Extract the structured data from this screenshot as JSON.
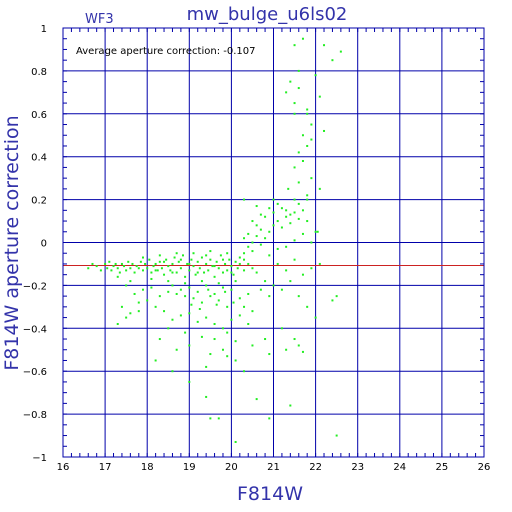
{
  "colors": {
    "background": "#ffffff",
    "frame": "#0000aa",
    "grid": "#0000aa",
    "points": "#22ee22",
    "average_line": "#cc2222",
    "text": "#3333aa",
    "tick_text": "#000000"
  },
  "chart_data": {
    "type": "scatter",
    "title": "mw_bulge_u6ls02",
    "panel_label": "WF3",
    "xlabel": "F814W",
    "ylabel": "F814W aperture correction",
    "annotation": "Average aperture correction: -0.107",
    "average_value": -0.107,
    "xlim": [
      16,
      26
    ],
    "ylim": [
      -1,
      1
    ],
    "x_ticks": [
      16,
      17,
      18,
      19,
      20,
      21,
      22,
      23,
      24,
      25,
      26
    ],
    "y_ticks": [
      -1,
      -0.8,
      -0.6,
      -0.4,
      -0.2,
      0,
      0.2,
      0.4,
      0.6,
      0.8,
      1
    ],
    "x_tick_labels": [
      "16",
      "17",
      "18",
      "19",
      "20",
      "21",
      "22",
      "23",
      "24",
      "25",
      "26"
    ],
    "y_tick_labels": [
      "−1",
      "−0.8",
      "−0.6",
      "−0.4",
      "−0.2",
      "0",
      "0.2",
      "0.4",
      "0.6",
      "0.8",
      "1"
    ],
    "grid": true,
    "series": [
      {
        "points": [
          [
            16.6,
            -0.12
          ],
          [
            16.7,
            -0.1
          ],
          [
            16.8,
            -0.11
          ],
          [
            16.9,
            -0.13
          ],
          [
            17.0,
            -0.1
          ],
          [
            17.05,
            -0.12
          ],
          [
            17.1,
            -0.09
          ],
          [
            17.15,
            -0.13
          ],
          [
            17.2,
            -0.11
          ],
          [
            17.25,
            -0.1
          ],
          [
            17.3,
            -0.12
          ],
          [
            17.35,
            -0.14
          ],
          [
            17.4,
            -0.1
          ],
          [
            17.45,
            -0.11
          ],
          [
            17.5,
            -0.13
          ],
          [
            17.55,
            -0.09
          ],
          [
            17.6,
            -0.12
          ],
          [
            17.65,
            -0.1
          ],
          [
            17.7,
            -0.14
          ],
          [
            17.75,
            -0.11
          ],
          [
            17.8,
            -0.12
          ],
          [
            17.85,
            -0.09
          ],
          [
            17.9,
            -0.13
          ],
          [
            17.95,
            -0.1
          ],
          [
            18.0,
            -0.12
          ],
          [
            18.05,
            -0.08
          ],
          [
            18.1,
            -0.14
          ],
          [
            18.15,
            -0.11
          ],
          [
            18.2,
            -0.1
          ],
          [
            18.25,
            -0.13
          ],
          [
            18.3,
            -0.09
          ],
          [
            18.35,
            -0.12
          ],
          [
            18.4,
            -0.15
          ],
          [
            18.45,
            -0.08
          ],
          [
            18.5,
            -0.11
          ],
          [
            18.55,
            -0.13
          ],
          [
            18.6,
            -0.1
          ],
          [
            18.65,
            -0.07
          ],
          [
            18.7,
            -0.14
          ],
          [
            18.75,
            -0.09
          ],
          [
            18.8,
            -0.12
          ],
          [
            18.85,
            -0.06
          ],
          [
            18.9,
            -0.16
          ],
          [
            18.95,
            -0.1
          ],
          [
            19.0,
            -0.13
          ],
          [
            19.05,
            -0.08
          ],
          [
            19.1,
            -0.11
          ],
          [
            19.15,
            -0.15
          ],
          [
            19.2,
            -0.09
          ],
          [
            19.25,
            -0.12
          ],
          [
            19.3,
            -0.07
          ],
          [
            19.35,
            -0.14
          ],
          [
            19.4,
            -0.1
          ],
          [
            19.45,
            -0.13
          ],
          [
            19.5,
            -0.08
          ],
          [
            19.55,
            -0.11
          ],
          [
            19.6,
            -0.16
          ],
          [
            19.65,
            -0.09
          ],
          [
            19.7,
            -0.12
          ],
          [
            19.75,
            -0.06
          ],
          [
            19.8,
            -0.14
          ],
          [
            19.85,
            -0.1
          ],
          [
            19.9,
            -0.13
          ],
          [
            19.95,
            -0.08
          ],
          [
            20.0,
            -0.11
          ],
          [
            20.05,
            -0.15
          ],
          [
            20.1,
            -0.09
          ],
          [
            20.15,
            -0.12
          ],
          [
            20.2,
            -0.07
          ],
          [
            20.3,
            -0.13
          ],
          [
            20.4,
            -0.1
          ],
          [
            20.5,
            -0.12
          ],
          [
            17.3,
            -0.16
          ],
          [
            17.6,
            -0.18
          ],
          [
            17.9,
            -0.07
          ],
          [
            18.1,
            -0.17
          ],
          [
            18.3,
            -0.06
          ],
          [
            18.5,
            -0.18
          ],
          [
            18.7,
            -0.05
          ],
          [
            18.9,
            -0.19
          ],
          [
            19.1,
            -0.05
          ],
          [
            19.3,
            -0.18
          ],
          [
            19.5,
            -0.04
          ],
          [
            19.7,
            -0.19
          ],
          [
            19.9,
            -0.05
          ],
          [
            20.1,
            -0.18
          ],
          [
            18.2,
            -0.13
          ],
          [
            18.6,
            -0.14
          ],
          [
            18.8,
            -0.08
          ],
          [
            19.0,
            -0.1
          ],
          [
            19.2,
            -0.14
          ],
          [
            19.4,
            -0.06
          ],
          [
            19.6,
            -0.11
          ],
          [
            19.8,
            -0.08
          ],
          [
            20.0,
            -0.14
          ],
          [
            18.4,
            -0.09
          ],
          [
            18.6,
            -0.2
          ],
          [
            18.8,
            -0.22
          ],
          [
            19.0,
            -0.21
          ],
          [
            19.2,
            -0.23
          ],
          [
            19.4,
            -0.2
          ],
          [
            19.6,
            -0.24
          ],
          [
            19.8,
            -0.21
          ],
          [
            20.0,
            -0.22
          ],
          [
            18.9,
            -0.25
          ],
          [
            19.1,
            -0.26
          ],
          [
            19.3,
            -0.28
          ],
          [
            19.5,
            -0.25
          ],
          [
            19.7,
            -0.27
          ],
          [
            19.9,
            -0.3
          ],
          [
            20.2,
            -0.26
          ],
          [
            20.4,
            -0.24
          ],
          [
            18.7,
            -0.24
          ],
          [
            19.05,
            -0.29
          ],
          [
            19.25,
            -0.31
          ],
          [
            19.45,
            -0.22
          ],
          [
            19.65,
            -0.29
          ],
          [
            19.85,
            -0.23
          ],
          [
            20.05,
            -0.28
          ],
          [
            18.5,
            -0.23
          ],
          [
            17.5,
            -0.2
          ],
          [
            17.7,
            -0.24
          ],
          [
            17.9,
            -0.22
          ],
          [
            18.1,
            -0.21
          ],
          [
            18.3,
            -0.25
          ],
          [
            17.4,
            -0.3
          ],
          [
            17.6,
            -0.33
          ],
          [
            17.8,
            -0.28
          ],
          [
            17.3,
            -0.38
          ],
          [
            17.5,
            -0.35
          ],
          [
            17.8,
            -0.32
          ],
          [
            18.0,
            -0.27
          ],
          [
            18.2,
            -0.3
          ],
          [
            18.4,
            -0.32
          ],
          [
            18.6,
            -0.36
          ],
          [
            18.8,
            -0.34
          ],
          [
            19.0,
            -0.33
          ],
          [
            19.2,
            -0.37
          ],
          [
            19.4,
            -0.35
          ],
          [
            19.6,
            -0.38
          ],
          [
            19.8,
            -0.4
          ],
          [
            20.0,
            -0.36
          ],
          [
            20.2,
            -0.34
          ],
          [
            20.4,
            -0.38
          ],
          [
            18.5,
            -0.4
          ],
          [
            18.9,
            -0.42
          ],
          [
            19.3,
            -0.44
          ],
          [
            19.6,
            -0.45
          ],
          [
            19.9,
            -0.42
          ],
          [
            20.1,
            -0.46
          ],
          [
            20.3,
            -0.3
          ],
          [
            20.5,
            -0.32
          ],
          [
            18.3,
            -0.45
          ],
          [
            18.7,
            -0.5
          ],
          [
            19.0,
            -0.48
          ],
          [
            19.5,
            -0.52
          ],
          [
            19.8,
            -0.5
          ],
          [
            20.1,
            -0.55
          ],
          [
            20.5,
            -0.48
          ],
          [
            20.8,
            -0.45
          ],
          [
            18.2,
            -0.55
          ],
          [
            18.6,
            -0.6
          ],
          [
            19.4,
            -0.58
          ],
          [
            19.9,
            -0.53
          ],
          [
            20.3,
            -0.6
          ],
          [
            20.9,
            -0.52
          ],
          [
            21.3,
            -0.5
          ],
          [
            21.6,
            -0.48
          ],
          [
            19.0,
            -0.65
          ],
          [
            19.4,
            -0.72
          ],
          [
            19.7,
            -0.82
          ],
          [
            19.5,
            -0.82
          ],
          [
            20.1,
            -0.93
          ],
          [
            20.6,
            -0.73
          ],
          [
            20.9,
            -0.82
          ],
          [
            21.4,
            -0.76
          ],
          [
            22.5,
            -0.9
          ],
          [
            22.5,
            -0.25
          ],
          [
            22.4,
            -0.27
          ],
          [
            21.8,
            -0.3
          ],
          [
            22.0,
            -0.35
          ],
          [
            21.5,
            -0.45
          ],
          [
            21.7,
            -0.51
          ],
          [
            21.2,
            -0.4
          ],
          [
            20.2,
            -0.1
          ],
          [
            20.3,
            -0.05
          ],
          [
            20.4,
            -0.02
          ],
          [
            20.5,
            0.0
          ],
          [
            20.6,
            0.03
          ],
          [
            20.7,
            0.06
          ],
          [
            20.8,
            0.02
          ],
          [
            20.9,
            0.05
          ],
          [
            21.0,
            0.08
          ],
          [
            21.1,
            0.1
          ],
          [
            21.2,
            0.07
          ],
          [
            21.3,
            0.12
          ],
          [
            21.4,
            0.09
          ],
          [
            21.5,
            0.14
          ],
          [
            21.6,
            0.11
          ],
          [
            21.7,
            0.15
          ],
          [
            20.3,
            -0.08
          ],
          [
            20.5,
            -0.04
          ],
          [
            20.7,
            -0.01
          ],
          [
            20.9,
            -0.06
          ],
          [
            21.1,
            -0.03
          ],
          [
            21.3,
            -0.02
          ],
          [
            21.5,
            0.01
          ],
          [
            21.7,
            0.04
          ],
          [
            20.4,
            0.04
          ],
          [
            20.6,
            0.08
          ],
          [
            20.8,
            0.12
          ],
          [
            21.0,
            0.14
          ],
          [
            21.2,
            0.16
          ],
          [
            21.4,
            0.13
          ],
          [
            21.6,
            0.18
          ],
          [
            21.8,
            0.2
          ],
          [
            20.3,
            0.02
          ],
          [
            20.5,
            0.1
          ],
          [
            20.7,
            0.13
          ],
          [
            20.9,
            0.16
          ],
          [
            21.1,
            0.18
          ],
          [
            21.3,
            0.15
          ],
          [
            21.5,
            0.2
          ],
          [
            21.8,
            0.1
          ],
          [
            20.3,
            0.2
          ],
          [
            20.6,
            0.17
          ],
          [
            21.0,
            0.2
          ],
          [
            21.35,
            0.25
          ],
          [
            21.6,
            0.28
          ],
          [
            21.8,
            0.22
          ],
          [
            21.9,
            0.3
          ],
          [
            22.1,
            0.25
          ],
          [
            21.1,
            -0.1
          ],
          [
            21.3,
            -0.13
          ],
          [
            21.5,
            -0.08
          ],
          [
            21.7,
            -0.15
          ],
          [
            21.9,
            -0.12
          ],
          [
            22.1,
            -0.1
          ],
          [
            22.0,
            0.05
          ],
          [
            21.9,
            0.0
          ],
          [
            20.6,
            -0.14
          ],
          [
            20.8,
            -0.18
          ],
          [
            21.0,
            -0.2
          ],
          [
            21.2,
            -0.22
          ],
          [
            21.4,
            -0.18
          ],
          [
            21.6,
            -0.25
          ],
          [
            20.7,
            -0.22
          ],
          [
            20.9,
            -0.25
          ],
          [
            21.5,
            0.35
          ],
          [
            21.7,
            0.38
          ],
          [
            21.6,
            0.42
          ],
          [
            21.8,
            0.45
          ],
          [
            21.7,
            0.5
          ],
          [
            21.9,
            0.55
          ],
          [
            21.8,
            0.6
          ],
          [
            21.5,
            0.65
          ],
          [
            21.6,
            0.72
          ],
          [
            21.3,
            0.7
          ],
          [
            21.6,
            0.8
          ],
          [
            21.8,
            0.62
          ],
          [
            21.9,
            0.48
          ],
          [
            21.5,
            0.6
          ],
          [
            21.4,
            0.75
          ],
          [
            21.7,
            0.95
          ],
          [
            22.0,
            0.78
          ],
          [
            22.1,
            0.68
          ],
          [
            22.2,
            0.52
          ],
          [
            22.4,
            0.85
          ],
          [
            22.2,
            0.92
          ],
          [
            22.6,
            0.89
          ],
          [
            21.5,
            0.92
          ],
          [
            22.05,
            0.05
          ]
        ]
      }
    ]
  }
}
